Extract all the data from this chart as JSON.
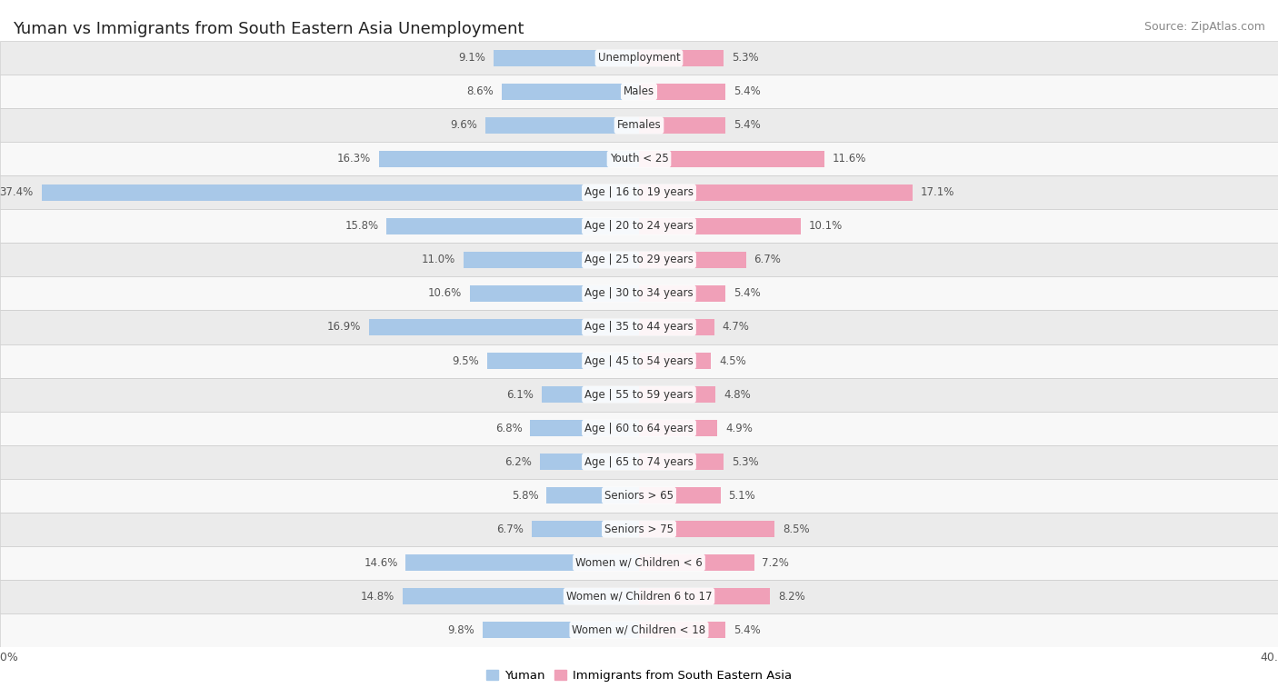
{
  "title": "Yuman vs Immigrants from South Eastern Asia Unemployment",
  "source": "Source: ZipAtlas.com",
  "categories": [
    "Unemployment",
    "Males",
    "Females",
    "Youth < 25",
    "Age | 16 to 19 years",
    "Age | 20 to 24 years",
    "Age | 25 to 29 years",
    "Age | 30 to 34 years",
    "Age | 35 to 44 years",
    "Age | 45 to 54 years",
    "Age | 55 to 59 years",
    "Age | 60 to 64 years",
    "Age | 65 to 74 years",
    "Seniors > 65",
    "Seniors > 75",
    "Women w/ Children < 6",
    "Women w/ Children 6 to 17",
    "Women w/ Children < 18"
  ],
  "yuman_values": [
    9.1,
    8.6,
    9.6,
    16.3,
    37.4,
    15.8,
    11.0,
    10.6,
    16.9,
    9.5,
    6.1,
    6.8,
    6.2,
    5.8,
    6.7,
    14.6,
    14.8,
    9.8
  ],
  "immigrant_values": [
    5.3,
    5.4,
    5.4,
    11.6,
    17.1,
    10.1,
    6.7,
    5.4,
    4.7,
    4.5,
    4.8,
    4.9,
    5.3,
    5.1,
    8.5,
    7.2,
    8.2,
    5.4
  ],
  "yuman_color": "#a8c8e8",
  "immigrant_color": "#f0a0b8",
  "label_color": "#555555",
  "axis_max": 40.0,
  "background_row_odd": "#ebebeb",
  "background_row_even": "#f8f8f8",
  "bar_height": 0.5,
  "legend_yuman": "Yuman",
  "legend_immigrant": "Immigrants from South Eastern Asia",
  "title_fontsize": 13,
  "source_fontsize": 9,
  "label_fontsize": 8.5,
  "value_fontsize": 8.5
}
